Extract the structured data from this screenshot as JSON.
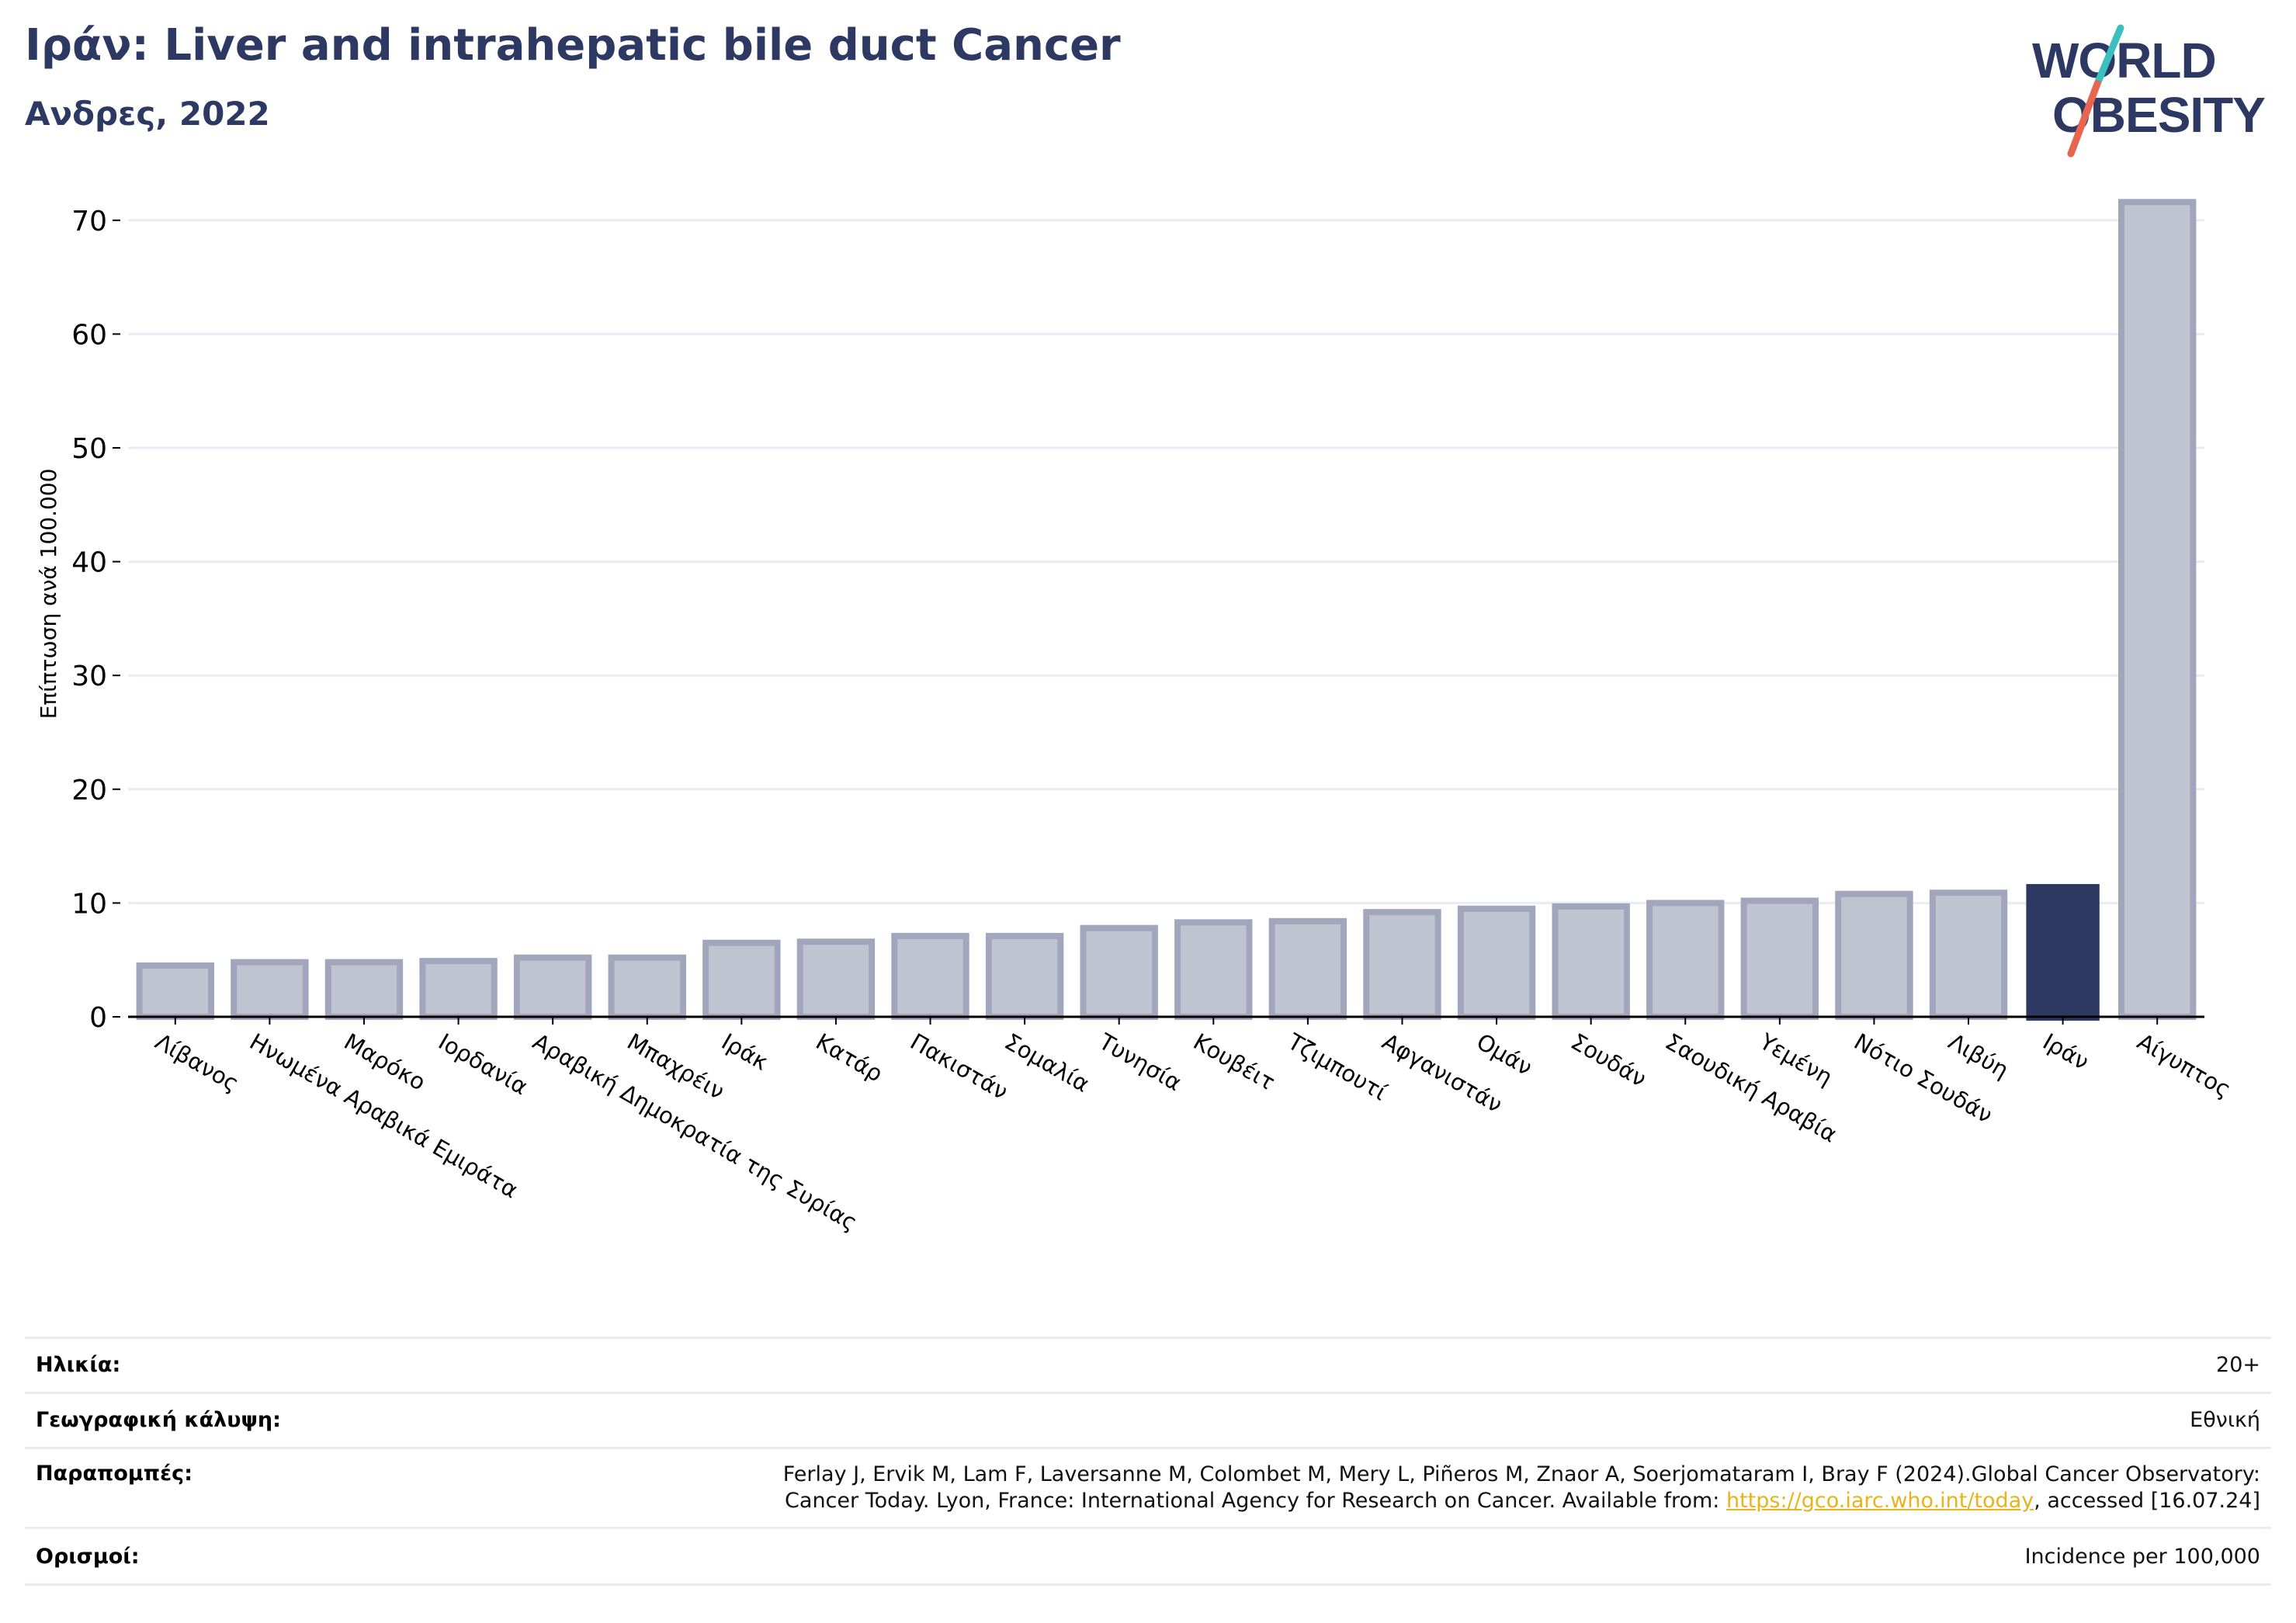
{
  "header": {
    "title": "Ιράν: Liver and intrahepatic bile duct Cancer",
    "subtitle": "Ανδρες, 2022"
  },
  "logo": {
    "line1": "WORLD",
    "line2": "OBESITY",
    "colors": {
      "text": "#2d3963",
      "slash_top": "#3bbfbf",
      "slash_bottom": "#e8664f"
    }
  },
  "colors": {
    "bar_default": "#c0c3d0",
    "bar_default_stroke": "#a1a6bc",
    "bar_highlight": "#2d3963",
    "grid": "#e9ecf3",
    "axis": "#000000"
  },
  "chart_data": {
    "type": "bar",
    "ylabel": "Επίπτωση ανά 100.000",
    "ylim": [
      0,
      75
    ],
    "yticks": [
      0,
      10,
      20,
      30,
      40,
      50,
      60,
      70
    ],
    "grid": true,
    "highlight": "Ιράν",
    "categories": [
      "Λίβανος",
      "Ηνωμένα Αραβικά Εμιράτα",
      "Μαρόκο",
      "Ιορδανία",
      "Αραβική Δημοκρατία της Συρίας",
      "Μπαχρέιν",
      "Ιράκ",
      "Κατάρ",
      "Πακιστάν",
      "Σομαλία",
      "Τυνησία",
      "Κουβέιτ",
      "Τζιμπουτί",
      "Αφγανιστάν",
      "Ομάν",
      "Σουδάν",
      "Σαουδική Αραβία",
      "Υεμένη",
      "Νότιο Σουδάν",
      "Λιβύη",
      "Ιράν",
      "Αίγυπτος"
    ],
    "values": [
      4.5,
      4.8,
      4.8,
      4.9,
      5.2,
      5.2,
      6.5,
      6.6,
      7.1,
      7.1,
      7.8,
      8.3,
      8.4,
      9.2,
      9.5,
      9.7,
      10.0,
      10.2,
      10.8,
      10.9,
      11.6,
      71.6
    ]
  },
  "meta": {
    "age": {
      "label": "Ηλικία:",
      "value": "20+"
    },
    "coverage": {
      "label": "Γεωγραφική κάλυψη:",
      "value": "Εθνική"
    },
    "references": {
      "label": "Παραπομπές:",
      "line1": "Ferlay J, Ervik M, Lam F, Laversanne M, Colombet M, Mery L, Piñeros M, Znaor A, Soerjomataram I, Bray F (2024).Global Cancer Observatory:",
      "line2_prefix": "Cancer Today. Lyon, France: International Agency for Research on Cancer. Available from: ",
      "link": "https://gco.iarc.who.int/today",
      "line2_suffix": ", accessed [16.07.24]"
    },
    "definitions": {
      "label": "Ορισμοί:",
      "value": "Incidence per 100,000"
    }
  }
}
